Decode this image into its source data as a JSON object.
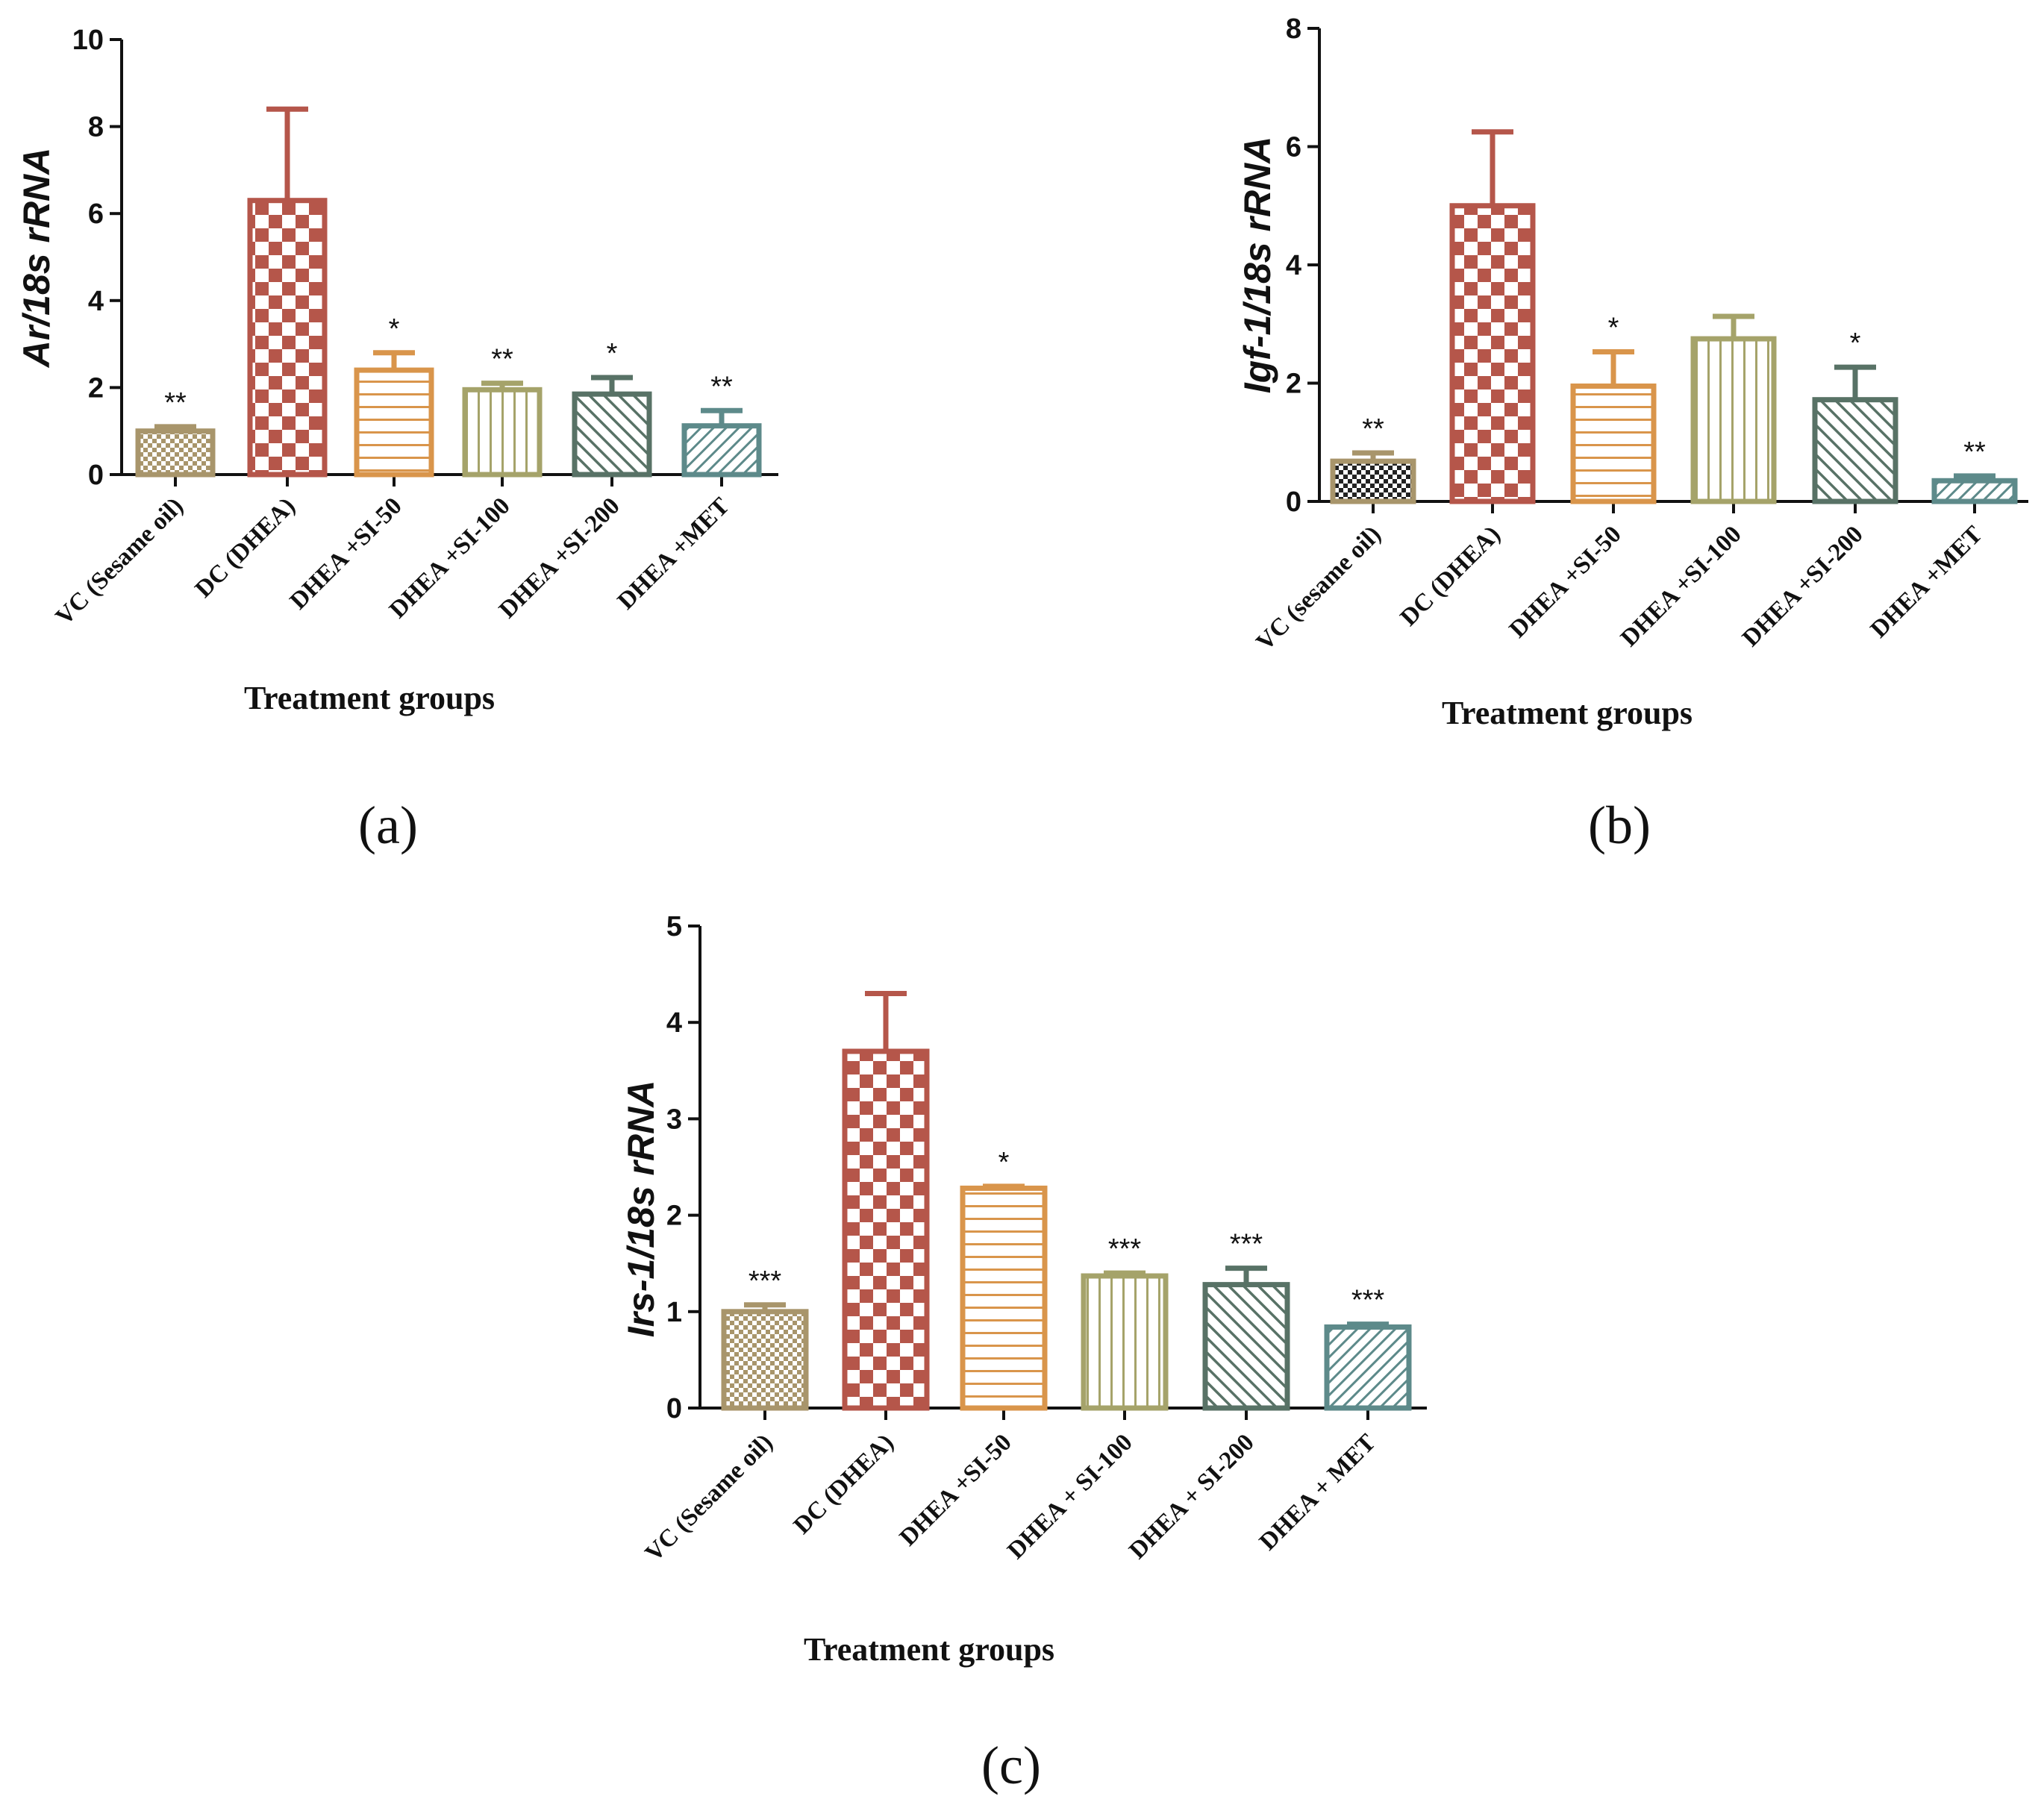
{
  "chart_data": [
    {
      "panel": "(a)",
      "type": "bar",
      "ylabel": "Ar/18s rRNA",
      "xlabel": "Treatment groups",
      "ylim": [
        0,
        10
      ],
      "yticks": [
        "0",
        "2",
        "4",
        "6",
        "8",
        "10"
      ],
      "categories": [
        "VC (Sesame oil)",
        "DC (DHEA)",
        "DHEA +SI-50",
        "DHEA +SI-100",
        "DHEA +SI-200",
        "DHEA +MET"
      ],
      "values": [
        1.0,
        6.3,
        2.4,
        1.95,
        1.85,
        1.12
      ],
      "errors": [
        0.1,
        2.1,
        0.4,
        0.15,
        0.38,
        0.35
      ],
      "significance": [
        "**",
        "",
        "*",
        "**",
        "*",
        "**"
      ],
      "colors": [
        "#a8956b",
        "#b5564a",
        "#d9954b",
        "#a5a36a",
        "#587266",
        "#5d8a8a"
      ],
      "patterns": [
        "dots",
        "checker",
        "hlines",
        "vlines",
        "diag",
        "diag-fine"
      ]
    },
    {
      "panel": "(b)",
      "type": "bar",
      "ylabel": "Igf-1/18s rRNA",
      "xlabel": "Treatment groups",
      "ylim": [
        0,
        8
      ],
      "yticks": [
        "0",
        "2",
        "4",
        "6",
        "8"
      ],
      "categories": [
        "VC (sesame oil)",
        "DC (DHEA)",
        "DHEA +SI-50",
        "DHEA +SI-100",
        "DHEA +SI-200",
        "DHEA +MET"
      ],
      "values": [
        0.68,
        5.0,
        1.95,
        2.75,
        1.72,
        0.35
      ],
      "errors": [
        0.14,
        1.25,
        0.58,
        0.38,
        0.55,
        0.08
      ],
      "significance": [
        "**",
        "",
        "*",
        "",
        "*",
        "**"
      ],
      "colors": [
        "#a8956b",
        "#b5564a",
        "#d9954b",
        "#a5a36a",
        "#587266",
        "#5d8a8a"
      ],
      "patterns": [
        "dots-dark",
        "checker",
        "hlines",
        "vlines",
        "diag",
        "diag-fine"
      ]
    },
    {
      "panel": "(c)",
      "type": "bar",
      "ylabel": "Irs-1/18s rRNA",
      "xlabel": "Treatment groups",
      "ylim": [
        0,
        5
      ],
      "yticks": [
        "0",
        "1",
        "2",
        "3",
        "4",
        "5"
      ],
      "categories": [
        "VC (Sesame oil)",
        "DC (DHEA)",
        "DHEA +SI-50",
        "DHEA + SI-100",
        "DHEA + SI-200",
        "DHEA + MET"
      ],
      "values": [
        1.0,
        3.7,
        2.28,
        1.37,
        1.28,
        0.84
      ],
      "errors": [
        0.07,
        0.6,
        0.02,
        0.03,
        0.17,
        0.03
      ],
      "significance": [
        "***",
        "",
        "*",
        "***",
        "***",
        "***"
      ],
      "colors": [
        "#a8956b",
        "#b5564a",
        "#d9954b",
        "#a5a36a",
        "#587266",
        "#5d8a8a"
      ],
      "patterns": [
        "dots",
        "checker",
        "hlines",
        "vlines",
        "diag",
        "diag-fine"
      ]
    }
  ]
}
